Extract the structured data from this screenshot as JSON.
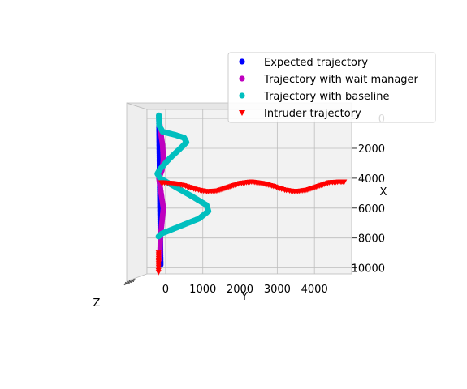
{
  "chart_data": {
    "type": "scatter",
    "title": "",
    "view": "3d-top-down",
    "xlabel": "X",
    "ylabel": "Y",
    "zlabel": "Z",
    "xlim": [
      -500,
      5000
    ],
    "ylim": [
      10400,
      -600
    ],
    "x_ticks": [
      "0",
      "1000",
      "2000",
      "3000",
      "4000"
    ],
    "y_ticks": [
      "0",
      "2000",
      "4000",
      "6000",
      "8000",
      "10000"
    ],
    "grid": true,
    "legend_position": "top-right",
    "series": [
      {
        "name": "Expected trajectory",
        "marker": "circle",
        "color": "#0000ff",
        "points": [
          [
            -180,
            -200
          ],
          [
            -175,
            1000
          ],
          [
            -170,
            2000
          ],
          [
            -165,
            3000
          ],
          [
            -160,
            4000
          ],
          [
            -155,
            5000
          ],
          [
            -150,
            6000
          ],
          [
            -145,
            7000
          ],
          [
            -140,
            8000
          ],
          [
            -135,
            9000
          ],
          [
            -130,
            9800
          ]
        ]
      },
      {
        "name": "Trajectory with wait manager",
        "marker": "circle",
        "color": "#bf00bf",
        "points": [
          [
            -180,
            -200
          ],
          [
            -140,
            800
          ],
          [
            -80,
            1800
          ],
          [
            -60,
            2800
          ],
          [
            -100,
            3500
          ],
          [
            -180,
            4000
          ],
          [
            -120,
            5000
          ],
          [
            -60,
            6000
          ],
          [
            -100,
            7000
          ],
          [
            -140,
            8000
          ],
          [
            -150,
            9000
          ],
          [
            -160,
            9400
          ]
        ]
      },
      {
        "name": "Trajectory with baseline",
        "marker": "circle",
        "color": "#00bfbf",
        "points": [
          [
            -180,
            -200
          ],
          [
            -170,
            500
          ],
          [
            -80,
            900
          ],
          [
            250,
            1100
          ],
          [
            500,
            1300
          ],
          [
            560,
            1600
          ],
          [
            400,
            2000
          ],
          [
            100,
            2700
          ],
          [
            -150,
            3400
          ],
          [
            -220,
            3700
          ],
          [
            -150,
            4000
          ],
          [
            200,
            4500
          ],
          [
            700,
            5200
          ],
          [
            1100,
            5800
          ],
          [
            1150,
            6200
          ],
          [
            900,
            6700
          ],
          [
            300,
            7300
          ],
          [
            -100,
            7700
          ],
          [
            -190,
            7900
          ]
        ]
      },
      {
        "name": "Intruder trajectory",
        "marker": "triangle_down",
        "color": "#ff0000",
        "points": [
          [
            -190,
            9000
          ],
          [
            -190,
            9800
          ],
          [
            -190,
            10300
          ],
          [
            -120,
            4300
          ],
          [
            200,
            4350
          ],
          [
            500,
            4500
          ],
          [
            800,
            4750
          ],
          [
            1100,
            4900
          ],
          [
            1400,
            4850
          ],
          [
            1700,
            4600
          ],
          [
            2000,
            4350
          ],
          [
            2300,
            4250
          ],
          [
            2600,
            4350
          ],
          [
            2900,
            4550
          ],
          [
            3200,
            4800
          ],
          [
            3500,
            4900
          ],
          [
            3800,
            4800
          ],
          [
            4100,
            4550
          ],
          [
            4400,
            4300
          ],
          [
            4700,
            4250
          ],
          [
            4800,
            4250
          ]
        ]
      }
    ]
  }
}
